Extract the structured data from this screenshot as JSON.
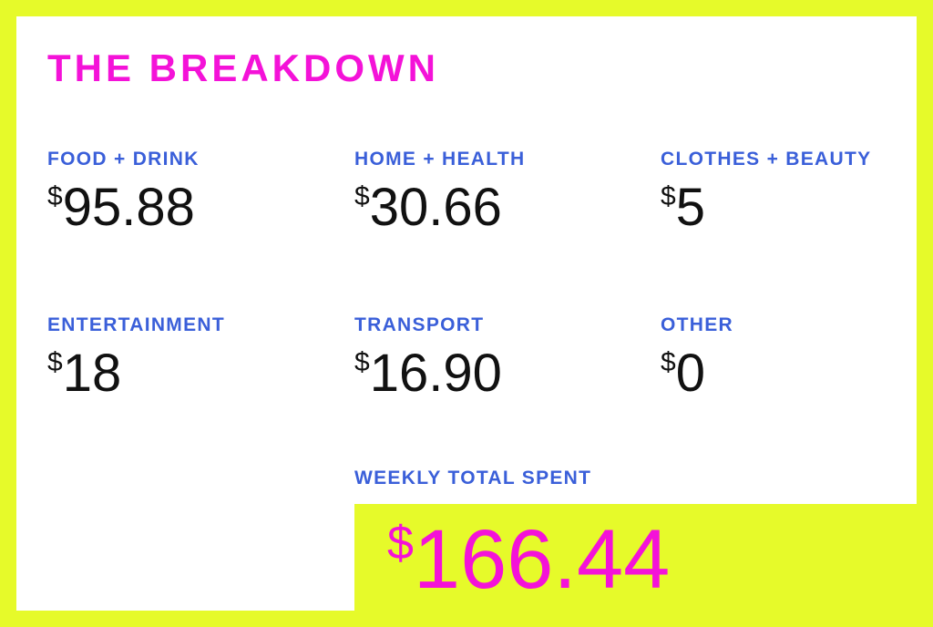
{
  "title": "THE BREAKDOWN",
  "currency_symbol": "$",
  "categories": [
    {
      "label": "FOOD + DRINK",
      "amount": "95.88"
    },
    {
      "label": "HOME + HEALTH",
      "amount": "30.66"
    },
    {
      "label": "CLOTHES + BEAUTY",
      "amount": "5"
    },
    {
      "label": "ENTERTAINMENT",
      "amount": "18"
    },
    {
      "label": "TRANSPORT",
      "amount": "16.90"
    },
    {
      "label": "OTHER",
      "amount": "0"
    }
  ],
  "total": {
    "label": "WEEKLY TOTAL SPENT",
    "amount": "166.44"
  },
  "colors": {
    "background": "#e6fa2a",
    "panel": "#ffffff",
    "title": "#f412d8",
    "label": "#3a5fd9",
    "amount": "#111111",
    "total": "#f412d8"
  }
}
